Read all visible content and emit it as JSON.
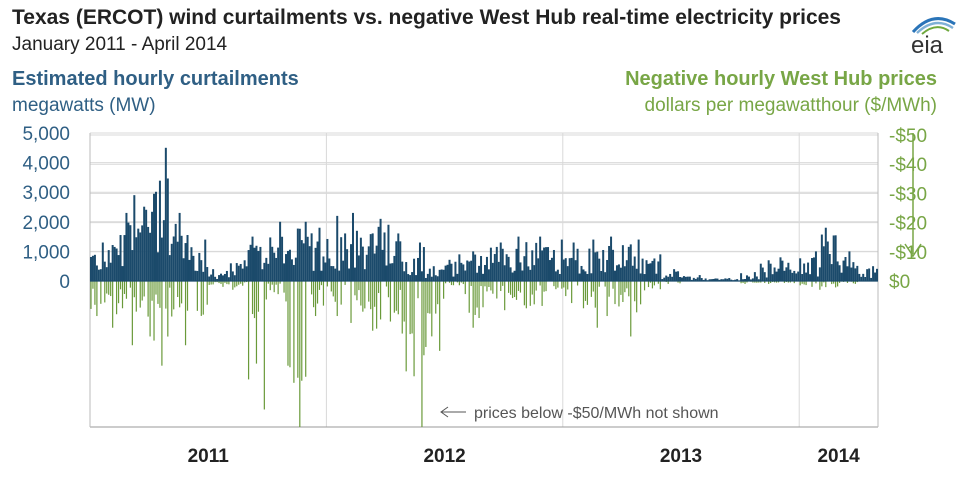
{
  "title": "Texas (ERCOT)  wind curtailments vs. negative West Hub real-time electricity prices",
  "subtitle": "January 2011 - April 2014",
  "logo_text": "eia",
  "colors": {
    "curtailment": "#1b4a6b",
    "price": "#6a9a3a",
    "left_axis": "#2f5f84",
    "right_axis": "#78a646",
    "grid": "#d9d9d9"
  },
  "chart_data": {
    "type": "bar",
    "x_range": [
      "2011-01",
      "2014-04"
    ],
    "x_tick_labels": [
      {
        "label": "2011",
        "year": 2011
      },
      {
        "label": "2012",
        "year": 2012
      },
      {
        "label": "2013",
        "year": 2013
      },
      {
        "label": "2014",
        "year": 2014
      }
    ],
    "left_axis": {
      "title": "Estimated hourly curtailments",
      "unit": "megawatts (MW)",
      "ylim": [
        0,
        5000
      ],
      "ticks": [
        0,
        1000,
        2000,
        3000,
        4000,
        5000
      ],
      "tick_labels": [
        "0",
        "1,000",
        "2,000",
        "3,000",
        "4,000",
        "5,000"
      ]
    },
    "right_axis": {
      "title": "Negative hourly West Hub prices",
      "unit": "dollars per megawatthour ($/MWh)",
      "ylim": [
        -50,
        0
      ],
      "ticks": [
        0,
        -10,
        -20,
        -30,
        -40,
        -50
      ],
      "tick_labels": [
        "$0",
        "-$10",
        "-$20",
        "-$30",
        "-$40",
        "-$50"
      ]
    },
    "annotation": "prices below -$50/MWh not shown",
    "series": [
      {
        "name": "Estimated hourly curtailments (MW)",
        "approx_monthly_peaks": [
          [
            "2011-01",
            1300
          ],
          [
            "2011-02",
            2300
          ],
          [
            "2011-03",
            2900
          ],
          [
            "2011-04",
            4500
          ],
          [
            "2011-05",
            2300
          ],
          [
            "2011-06",
            1400
          ],
          [
            "2011-07",
            400
          ],
          [
            "2011-08",
            700
          ],
          [
            "2011-09",
            1500
          ],
          [
            "2011-10",
            2000
          ],
          [
            "2011-11",
            2000
          ],
          [
            "2011-12",
            1800
          ],
          [
            "2012-01",
            2200
          ],
          [
            "2012-02",
            2300
          ],
          [
            "2012-03",
            2100
          ],
          [
            "2012-04",
            1900
          ],
          [
            "2012-05",
            1300
          ],
          [
            "2012-06",
            500
          ],
          [
            "2012-07",
            900
          ],
          [
            "2012-08",
            1000
          ],
          [
            "2012-09",
            1300
          ],
          [
            "2012-10",
            1500
          ],
          [
            "2012-11",
            1500
          ],
          [
            "2012-12",
            1400
          ],
          [
            "2013-01",
            1300
          ],
          [
            "2013-02",
            1400
          ],
          [
            "2013-03",
            1500
          ],
          [
            "2013-04",
            1400
          ],
          [
            "2013-05",
            900
          ],
          [
            "2013-06",
            400
          ],
          [
            "2013-07",
            200
          ],
          [
            "2013-08",
            100
          ],
          [
            "2013-09",
            100
          ],
          [
            "2013-10",
            300
          ],
          [
            "2013-11",
            700
          ],
          [
            "2013-12",
            800
          ],
          [
            "2014-01",
            1000
          ],
          [
            "2014-02",
            1800
          ],
          [
            "2014-03",
            1000
          ],
          [
            "2014-04",
            500
          ]
        ]
      },
      {
        "name": "Negative hourly West Hub prices ($/MWh)",
        "approx_monthly_lows": [
          [
            "2011-01",
            -12
          ],
          [
            "2011-02",
            -16
          ],
          [
            "2011-03",
            -22
          ],
          [
            "2011-04",
            -29
          ],
          [
            "2011-05",
            -22
          ],
          [
            "2011-06",
            -16
          ],
          [
            "2011-07",
            -2
          ],
          [
            "2011-08",
            -3
          ],
          [
            "2011-09",
            -44
          ],
          [
            "2011-10",
            -7
          ],
          [
            "2011-11",
            -50
          ],
          [
            "2011-12",
            -12
          ],
          [
            "2012-01",
            -12
          ],
          [
            "2012-02",
            -19
          ],
          [
            "2012-03",
            -22
          ],
          [
            "2012-04",
            -18
          ],
          [
            "2012-05",
            -50
          ],
          [
            "2012-06",
            -35
          ],
          [
            "2012-07",
            -2
          ],
          [
            "2012-08",
            -16
          ],
          [
            "2012-09",
            -6
          ],
          [
            "2012-10",
            -10
          ],
          [
            "2012-11",
            -13
          ],
          [
            "2012-12",
            -6
          ],
          [
            "2013-01",
            -10
          ],
          [
            "2013-02",
            -16
          ],
          [
            "2013-03",
            -12
          ],
          [
            "2013-04",
            -19
          ],
          [
            "2013-05",
            -5
          ],
          [
            "2013-06",
            -1
          ],
          [
            "2013-07",
            0
          ],
          [
            "2013-08",
            0
          ],
          [
            "2013-09",
            0
          ],
          [
            "2013-10",
            -1
          ],
          [
            "2013-11",
            -1
          ],
          [
            "2013-12",
            -1
          ],
          [
            "2014-01",
            -2
          ],
          [
            "2014-02",
            -3
          ],
          [
            "2014-03",
            -1
          ],
          [
            "2014-04",
            0
          ]
        ]
      }
    ]
  }
}
